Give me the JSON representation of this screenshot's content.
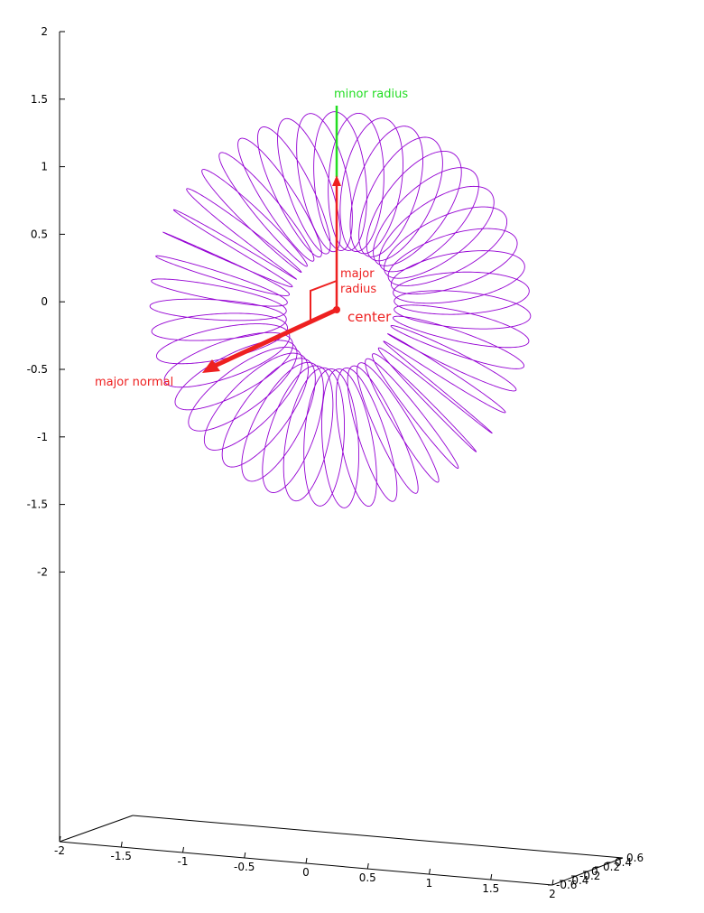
{
  "chart_data": {
    "type": "3d-line",
    "curve": "toroidal helix",
    "loops": 48,
    "major_radius": 0.95,
    "minor_radius": 0.5,
    "z_axis": {
      "ticks": [
        "2",
        "1.5",
        "1",
        "0.5",
        "0",
        "-0.5",
        "-1",
        "-1.5",
        "-2"
      ],
      "range": [
        -2,
        2
      ]
    },
    "x_axis": {
      "ticks": [
        "-2",
        "-1.5",
        "-1",
        "-0.5",
        "0",
        "0.5",
        "1",
        "1.5",
        "2"
      ],
      "range": [
        -2,
        2
      ]
    },
    "y_axis": {
      "ticks": [
        "-0.6",
        "-0.4",
        "-0.2",
        "0",
        "0.2",
        "0.4",
        "0.6"
      ],
      "range": [
        -0.6,
        0.6
      ]
    },
    "annotations": {
      "minor_radius": "minor radius",
      "major_radius_line1": "major",
      "major_radius_line2": "radius",
      "center": "center",
      "major_normal": "major normal"
    },
    "colors": {
      "curve": "#9400d3",
      "annotation": "#ee2020",
      "minor_radius": "#22dd22",
      "axis": "#000000"
    }
  }
}
